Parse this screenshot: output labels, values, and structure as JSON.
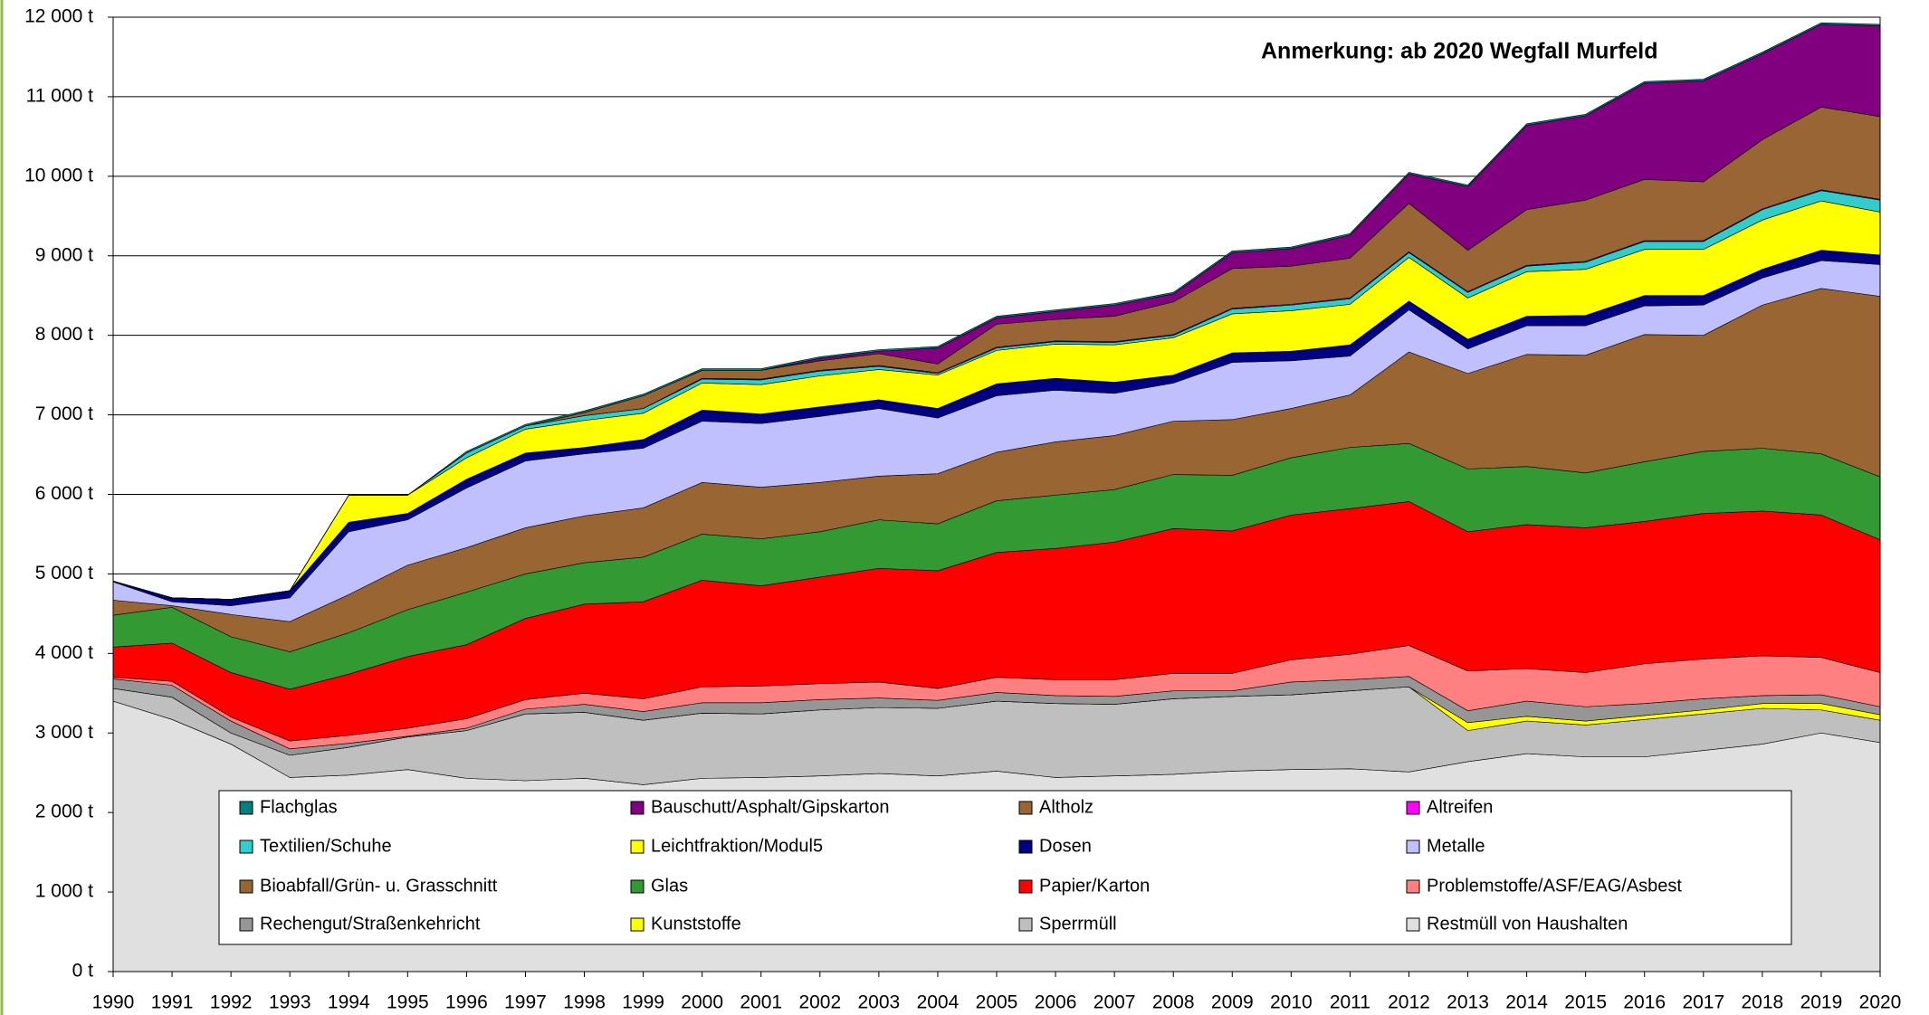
{
  "chart_data": {
    "type": "stacked_area",
    "annotation": "Anmerkung: ab 2020 Wegfall Murfeld",
    "categories": [
      "1990",
      "1991",
      "1992",
      "1993",
      "1994",
      "1995",
      "1996",
      "1997",
      "1998",
      "1999",
      "2000",
      "2001",
      "2002",
      "2003",
      "2004",
      "2005",
      "2006",
      "2007",
      "2008",
      "2009",
      "2010",
      "2011",
      "2012",
      "2013",
      "2014",
      "2015",
      "2016",
      "2017",
      "2018",
      "2019",
      "2020"
    ],
    "ylim": [
      0,
      12000
    ],
    "yticks": [
      {
        "value": 0,
        "label": "0 t"
      },
      {
        "value": 1000,
        "label": "1 000 t"
      },
      {
        "value": 2000,
        "label": "2 000 t"
      },
      {
        "value": 3000,
        "label": "3 000 t"
      },
      {
        "value": 4000,
        "label": "4 000 t"
      },
      {
        "value": 5000,
        "label": "5 000 t"
      },
      {
        "value": 6000,
        "label": "6 000 t"
      },
      {
        "value": 7000,
        "label": "7 000 t"
      },
      {
        "value": 8000,
        "label": "8 000 t"
      },
      {
        "value": 9000,
        "label": "9 000 t"
      },
      {
        "value": 10000,
        "label": "10 000 t"
      },
      {
        "value": 11000,
        "label": "11 000 t"
      },
      {
        "value": 12000,
        "label": "12 000 t"
      }
    ],
    "grid": true,
    "series": [
      {
        "name": "Restmüll von Haushalten",
        "color": "#e0e0e0",
        "values": [
          3400,
          3170,
          2860,
          2440,
          2470,
          2540,
          2430,
          2400,
          2430,
          2350,
          2430,
          2440,
          2460,
          2490,
          2460,
          2520,
          2440,
          2460,
          2480,
          2520,
          2540,
          2550,
          2510,
          2640,
          2740,
          2700,
          2700,
          2780,
          2860,
          3000,
          2880
        ]
      },
      {
        "name": "Sperrmüll",
        "color": "#bfbfbf",
        "values": [
          160,
          280,
          140,
          280,
          350,
          410,
          600,
          840,
          830,
          810,
          820,
          800,
          830,
          830,
          850,
          880,
          930,
          900,
          950,
          940,
          940,
          980,
          1070,
          390,
          410,
          400,
          470,
          460,
          450,
          290,
          280
        ]
      },
      {
        "name": "Kunststoffe",
        "color": "#ffff00",
        "values": [
          0,
          0,
          0,
          0,
          0,
          0,
          0,
          0,
          0,
          0,
          0,
          0,
          0,
          0,
          0,
          0,
          0,
          0,
          0,
          0,
          0,
          0,
          0,
          100,
          60,
          50,
          50,
          50,
          60,
          80,
          70
        ]
      },
      {
        "name": "Rechengut/Straßenkehricht",
        "color": "#969696",
        "values": [
          120,
          150,
          150,
          80,
          50,
          10,
          30,
          60,
          100,
          110,
          130,
          140,
          130,
          120,
          100,
          110,
          100,
          100,
          100,
          70,
          160,
          140,
          130,
          150,
          190,
          180,
          150,
          140,
          100,
          110,
          100
        ]
      },
      {
        "name": "Problemstoffe/ASF/EAG/Asbest",
        "color": "#ff8080",
        "values": [
          20,
          50,
          50,
          100,
          100,
          100,
          120,
          120,
          140,
          160,
          200,
          210,
          200,
          200,
          150,
          190,
          200,
          210,
          220,
          220,
          280,
          320,
          390,
          500,
          410,
          430,
          500,
          500,
          500,
          470,
          430
        ]
      },
      {
        "name": "Papier/Karton",
        "color": "#ff0000",
        "values": [
          380,
          480,
          560,
          650,
          770,
          900,
          930,
          1020,
          1120,
          1220,
          1340,
          1260,
          1340,
          1430,
          1480,
          1570,
          1650,
          1730,
          1820,
          1790,
          1820,
          1830,
          1810,
          1750,
          1810,
          1820,
          1790,
          1830,
          1820,
          1790,
          1670
        ]
      },
      {
        "name": "Glas",
        "color": "#339933",
        "values": [
          400,
          450,
          450,
          470,
          520,
          590,
          660,
          560,
          520,
          560,
          580,
          590,
          570,
          610,
          590,
          650,
          670,
          660,
          680,
          700,
          720,
          770,
          730,
          790,
          730,
          690,
          750,
          780,
          790,
          770,
          790
        ]
      },
      {
        "name": "Bioabfall/Grün- u. Grasschnitt",
        "color": "#996633",
        "values": [
          190,
          20,
          280,
          380,
          480,
          560,
          560,
          580,
          590,
          620,
          650,
          650,
          620,
          550,
          630,
          610,
          670,
          680,
          670,
          700,
          620,
          660,
          1150,
          1200,
          1410,
          1480,
          1600,
          1460,
          1800,
          2080,
          2270
        ]
      },
      {
        "name": "Metalle",
        "color": "#c0c0ff",
        "values": [
          230,
          50,
          110,
          300,
          790,
          570,
          750,
          840,
          780,
          750,
          770,
          800,
          830,
          850,
          700,
          710,
          650,
          530,
          480,
          720,
          600,
          490,
          530,
          310,
          360,
          370,
          360,
          380,
          340,
          350,
          400
        ]
      },
      {
        "name": "Dosen",
        "color": "#000080",
        "values": [
          10,
          50,
          80,
          90,
          120,
          80,
          110,
          100,
          80,
          110,
          140,
          120,
          120,
          110,
          120,
          150,
          150,
          140,
          100,
          120,
          120,
          140,
          110,
          120,
          120,
          130,
          130,
          120,
          110,
          130,
          120
        ]
      },
      {
        "name": "Leichtfraktion/Modul5",
        "color": "#ffff00",
        "values": [
          0,
          0,
          0,
          0,
          340,
          230,
          270,
          300,
          340,
          330,
          340,
          370,
          390,
          380,
          420,
          420,
          430,
          470,
          470,
          490,
          510,
          510,
          550,
          520,
          560,
          580,
          580,
          580,
          620,
          620,
          540
        ]
      },
      {
        "name": "Textilien/Schuhe",
        "color": "#33cccc",
        "values": [
          0,
          0,
          0,
          0,
          0,
          0,
          60,
          40,
          60,
          60,
          50,
          60,
          60,
          40,
          20,
          30,
          30,
          30,
          30,
          60,
          70,
          70,
          60,
          70,
          70,
          90,
          100,
          100,
          130,
          130,
          150
        ]
      },
      {
        "name": "Altreifen",
        "color": "#ff00ff",
        "values": [
          0,
          0,
          0,
          0,
          0,
          0,
          0,
          0,
          0,
          0,
          10,
          10,
          10,
          10,
          10,
          10,
          10,
          10,
          10,
          10,
          10,
          10,
          10,
          10,
          10,
          10,
          10,
          10,
          10,
          10,
          10
        ]
      },
      {
        "name": "Altholz",
        "color": "#9a6535",
        "values": [
          0,
          0,
          0,
          0,
          0,
          0,
          0,
          0,
          40,
          160,
          100,
          110,
          120,
          150,
          110,
          290,
          270,
          320,
          410,
          500,
          480,
          500,
          610,
          520,
          700,
          770,
          770,
          740,
          870,
          1040,
          1040
        ]
      },
      {
        "name": "Bauschutt/Asphalt/Gipskarton",
        "color": "#800080",
        "values": [
          0,
          0,
          0,
          0,
          0,
          0,
          0,
          0,
          0,
          0,
          0,
          0,
          30,
          30,
          200,
          80,
          100,
          140,
          100,
          200,
          220,
          290,
          370,
          800,
          1060,
          1060,
          1210,
          1270,
          1080,
          1040,
          1140
        ]
      },
      {
        "name": "Flachglas",
        "color": "#008080",
        "values": [
          0,
          0,
          0,
          0,
          0,
          0,
          20,
          20,
          20,
          20,
          20,
          20,
          20,
          20,
          20,
          20,
          20,
          20,
          20,
          20,
          20,
          20,
          20,
          20,
          20,
          20,
          20,
          20,
          20,
          20,
          20
        ]
      }
    ]
  }
}
